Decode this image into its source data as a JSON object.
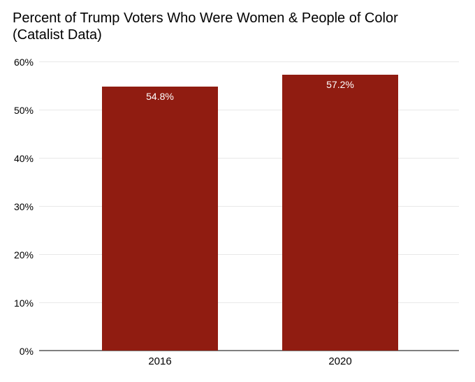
{
  "title_lines": [
    "Percent of Trump Voters Who Were Women & People of Color",
    "(Catalist Data)"
  ],
  "chart_data": {
    "type": "bar",
    "title": "Percent of Trump Voters Who Were Women & People of Color (Catalist Data)",
    "categories": [
      "2016",
      "2020"
    ],
    "values": [
      54.8,
      57.2
    ],
    "value_labels": [
      "54.8%",
      "57.2%"
    ],
    "xlabel": "",
    "ylabel": "",
    "ylim": [
      0,
      60
    ],
    "yticks": [
      0,
      10,
      20,
      30,
      40,
      50,
      60
    ],
    "ytick_labels": [
      "0%",
      "10%",
      "20%",
      "30%",
      "40%",
      "50%",
      "60%"
    ],
    "grid": true,
    "legend": "none",
    "colors": {
      "bar": "#901c11",
      "value_label": "#ffffff",
      "gridline": "#e8e8e8",
      "axis_line": "#7f7f7f",
      "title_text": "#000000",
      "tick_text": "#000000"
    }
  }
}
